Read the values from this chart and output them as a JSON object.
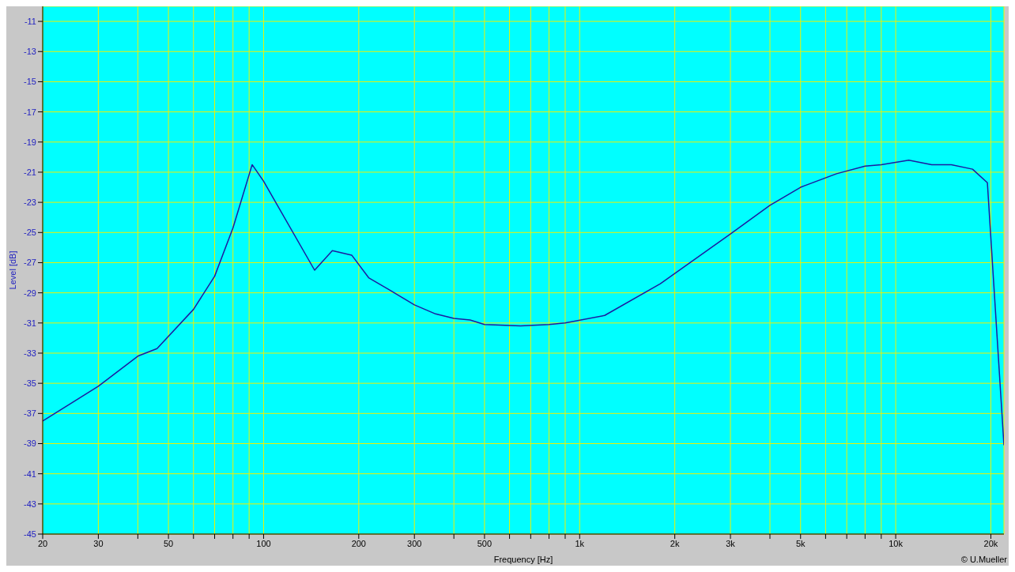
{
  "chart_data": {
    "type": "line",
    "xlabel": "Frequency [Hz]",
    "ylabel": "Level [dB]",
    "log": "x",
    "grid": true,
    "xlim": [
      20,
      22000
    ],
    "xticks": [
      20,
      30,
      {
        "value": 40,
        "label": null
      },
      50,
      {
        "value": 60,
        "label": null
      },
      {
        "value": 70,
        "label": null
      },
      {
        "value": 80,
        "label": null
      },
      {
        "value": 90,
        "label": null
      },
      100,
      200,
      300,
      {
        "value": 400,
        "label": null
      },
      500,
      {
        "value": 600,
        "label": null
      },
      {
        "value": 700,
        "label": null
      },
      {
        "value": 800,
        "label": null
      },
      {
        "value": 900,
        "label": null
      },
      {
        "value": 1000,
        "label": "1k"
      },
      {
        "value": 2000,
        "label": "2k"
      },
      {
        "value": 3000,
        "label": "3k"
      },
      {
        "value": 4000,
        "label": null
      },
      {
        "value": 5000,
        "label": "5k"
      },
      {
        "value": 6000,
        "label": null
      },
      {
        "value": 7000,
        "label": null
      },
      {
        "value": 8000,
        "label": null
      },
      {
        "value": 9000,
        "label": null
      },
      {
        "value": 10000,
        "label": "10k"
      },
      {
        "value": 20000,
        "label": "20k"
      }
    ],
    "ylim": [
      -45,
      -10
    ],
    "yticks": [
      -45,
      -43,
      -41,
      -39,
      -37,
      -35,
      -33,
      -31,
      -29,
      -27,
      -25,
      -23,
      -21,
      -19,
      -17,
      -15,
      -13,
      -11
    ],
    "x": [
      20,
      30,
      40,
      46,
      60,
      70,
      80,
      92,
      100,
      145,
      165,
      190,
      215,
      250,
      300,
      350,
      400,
      450,
      500,
      650,
      800,
      900,
      1200,
      1800,
      3000,
      4000,
      5000,
      6500,
      8000,
      9000,
      11000,
      13000,
      15000,
      17500,
      19500,
      22000
    ],
    "series": [
      {
        "color": "#1c1ca0",
        "values": [
          -37.5,
          -35.2,
          -33.2,
          -32.7,
          -30.1,
          -27.9,
          -24.7,
          -20.5,
          -21.6,
          -27.5,
          -26.2,
          -26.5,
          -28.0,
          -28.8,
          -29.8,
          -30.4,
          -30.7,
          -30.8,
          -31.1,
          -31.2,
          -31.1,
          -31.0,
          -30.5,
          -28.4,
          -25.1,
          -23.2,
          -22.0,
          -21.1,
          -20.6,
          -20.5,
          -20.2,
          -20.5,
          -20.5,
          -20.8,
          -21.7,
          -39.1
        ]
      }
    ],
    "annotations": [
      "© U.Mueller"
    ]
  }
}
